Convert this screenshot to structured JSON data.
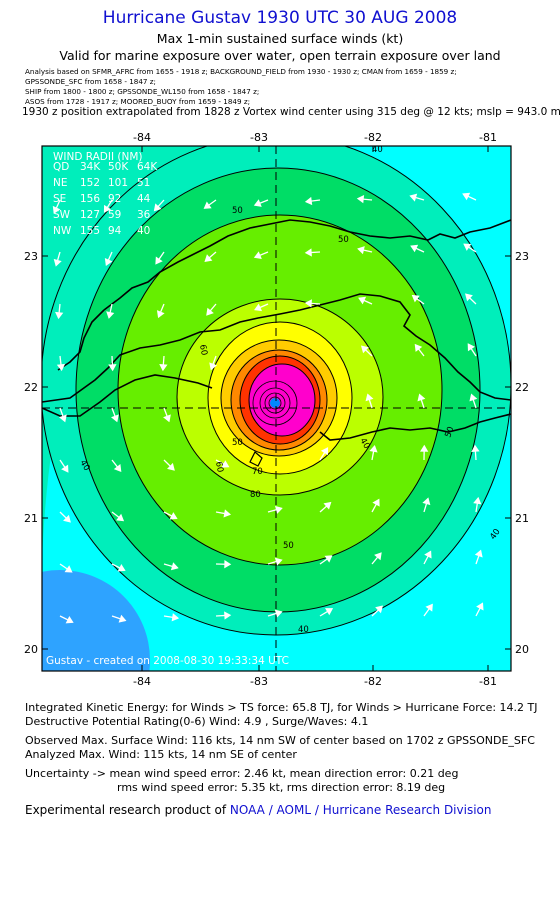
{
  "header": {
    "title": "Hurricane Gustav 1930 UTC 30 AUG 2008",
    "subtitle1": "Max 1-min sustained surface winds (kt)",
    "subtitle2": "Valid for marine exposure over water, open terrain exposure over land",
    "sources": [
      "Analysis based on  SFMR_AFRC from 1655 - 1918 z;  BACKGROUND_FIELD from 1930 - 1930 z;  CMAN from 1659 - 1859 z;",
      "GPSSONDE_SFC from 1658 - 1847 z;",
      "SHIP from 1800 - 1800 z;  GPSSONDE_WL150 from 1658 - 1847 z;",
      "ASOS from 1728 - 1917 z;  MOORED_BUOY from 1659 - 1849 z;"
    ],
    "position_note": "1930 z position extrapolated from 1828 z Vortex wind center using 315 deg @ 12 kts; mslp = 943.0 mb"
  },
  "map": {
    "lon_ticks": [
      "-84",
      "-83",
      "-82",
      "-81"
    ],
    "lat_ticks": [
      "23",
      "22",
      "21",
      "20"
    ],
    "center": {
      "lon": -82.8,
      "lat": 21.85
    },
    "wind_radii": {
      "title": "WIND RADII (NM)",
      "header": [
        "QD",
        "34K",
        "50K",
        "64K"
      ],
      "rows": [
        [
          "NE",
          "152",
          "101",
          "51"
        ],
        [
          "SE",
          "156",
          "92",
          "44"
        ],
        [
          "SW",
          "127",
          "59",
          "36"
        ],
        [
          "NW",
          "155",
          "94",
          "40"
        ]
      ]
    },
    "contour_labels": [
      "40",
      "50",
      "50",
      "60",
      "70",
      "80",
      "50",
      "40",
      "40",
      "50",
      "40",
      "50",
      "60",
      "40"
    ],
    "footer_credit": "Gustav - created on 2008-08-30 19:33:34 UTC",
    "colors": {
      "ocean_outer": "#00ffff",
      "ring_30": "#00eebb",
      "ring_40": "#00dd66",
      "ring_50": "#66ee00",
      "ring_60": "#bbff00",
      "ring_70": "#ffff00",
      "ring_80": "#ffcc00",
      "ring_90": "#ff8800",
      "ring_100": "#ff3300",
      "ring_110": "#ff00cc",
      "corner": "#3399ff"
    }
  },
  "stats": {
    "ike": "Integrated Kinetic Energy:  for Winds > TS force: 65.8 TJ,  for Winds > Hurricane Force: 14.2 TJ",
    "dpr": "Destructive Potential Rating(0-6)   Wind: 4.9 , Surge/Waves: 4.1",
    "observed": "Observed Max. Surface Wind: 116 kts, 14 nm SW of center based on 1702 z GPSSONDE_SFC",
    "analyzed": "Analyzed Max. Wind: 115 kts, 14 nm SE of center",
    "uncertainty1": "Uncertainty -> mean wind speed error: 2.46 kt,   mean direction error: 0.21 deg",
    "uncertainty2": "rms wind speed error: 5.35 kt,   rms direction error: 8.19 deg",
    "credit_prefix": "Experimental research product of ",
    "credit_org": "NOAA / AOML / Hurricane Research Division"
  }
}
